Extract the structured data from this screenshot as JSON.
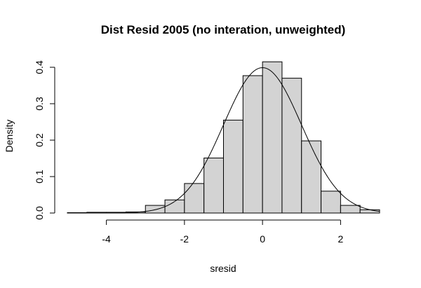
{
  "chart_data": {
    "type": "bar",
    "title": "Dist Resid 2005 (no interation, unweighted)",
    "xlabel": "sresid",
    "ylabel": "Density",
    "xlim": [
      -5.0,
      3.0
    ],
    "ylim": [
      0,
      0.4
    ],
    "x_ticks": [
      -4,
      -2,
      0,
      2
    ],
    "x_tick_labels": [
      "-4",
      "-2",
      "0",
      "2"
    ],
    "y_ticks": [
      0.0,
      0.1,
      0.2,
      0.3,
      0.4
    ],
    "y_tick_labels": [
      "0.0",
      "0.1",
      "0.2",
      "0.3",
      "0.4"
    ],
    "bins": [
      {
        "start": -5.0,
        "end": -4.5,
        "density": 0.001
      },
      {
        "start": -4.5,
        "end": -4.0,
        "density": 0.002
      },
      {
        "start": -4.0,
        "end": -3.5,
        "density": 0.002
      },
      {
        "start": -3.5,
        "end": -3.0,
        "density": 0.003
      },
      {
        "start": -3.0,
        "end": -2.5,
        "density": 0.021
      },
      {
        "start": -2.5,
        "end": -2.0,
        "density": 0.036
      },
      {
        "start": -2.0,
        "end": -1.5,
        "density": 0.081
      },
      {
        "start": -1.5,
        "end": -1.0,
        "density": 0.151
      },
      {
        "start": -1.0,
        "end": -0.5,
        "density": 0.255
      },
      {
        "start": -0.5,
        "end": 0.0,
        "density": 0.377
      },
      {
        "start": 0.0,
        "end": 0.5,
        "density": 0.415
      },
      {
        "start": 0.5,
        "end": 1.0,
        "density": 0.37
      },
      {
        "start": 1.0,
        "end": 1.5,
        "density": 0.198
      },
      {
        "start": 1.5,
        "end": 2.0,
        "density": 0.06
      },
      {
        "start": 2.0,
        "end": 2.5,
        "density": 0.021
      },
      {
        "start": 2.5,
        "end": 3.0,
        "density": 0.009
      }
    ],
    "overlay": {
      "type": "normal-density",
      "mean": 0,
      "sd": 1
    },
    "colors": {
      "bar_fill": "#d3d3d3",
      "bar_stroke": "#000000",
      "curve": "#000000"
    },
    "grid": false,
    "legend": "none"
  }
}
